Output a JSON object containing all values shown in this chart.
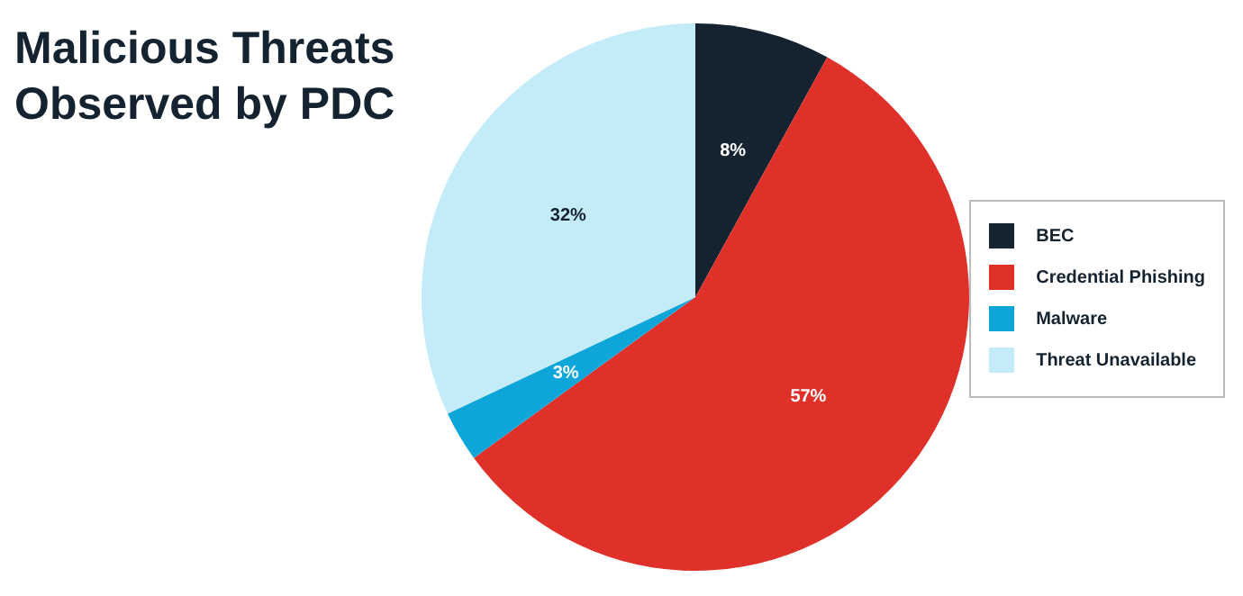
{
  "chart_data": {
    "type": "pie",
    "title": "Malicious Threats Observed by PDC",
    "categories": [
      "BEC",
      "Credential Phishing",
      "Malware",
      "Threat Unavailable"
    ],
    "values": [
      8,
      57,
      3,
      32
    ],
    "colors": [
      "#14232f",
      "#e0302a",
      "#0ea5d9",
      "#c3ebf8"
    ],
    "value_labels": [
      "8%",
      "57%",
      "3%",
      "32%"
    ],
    "legend": "right"
  }
}
